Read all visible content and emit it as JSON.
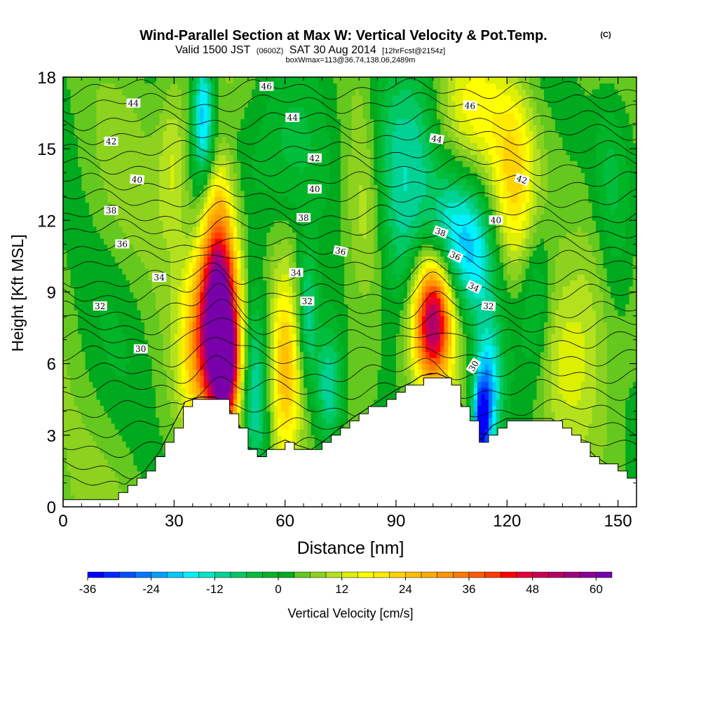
{
  "title": {
    "main": "Wind-Parallel Section at Max W: Vertical Velocity & Pot.Temp.",
    "copyright": "(C)",
    "valid_a": "Valid 1500 JST",
    "valid_b": "(0600Z)",
    "valid_c": "SAT 30 Aug 2014",
    "valid_d": "[12hrFcst@2154z]",
    "box": "boxWmax=113@36.74,138.06,2489m"
  },
  "chart_data": {
    "type": "heatmap",
    "xlabel": "Distance [nm]",
    "ylabel": "Height [Kft MSL]",
    "xlim": [
      0,
      155
    ],
    "ylim": [
      0,
      18
    ],
    "x_ticks": [
      "0",
      "30",
      "60",
      "90",
      "120",
      "150"
    ],
    "y_ticks": [
      "0",
      "3",
      "6",
      "9",
      "12",
      "15",
      "18"
    ],
    "colorbar": {
      "label": "Vertical Velocity [cm/s]",
      "ticks": [
        "-36",
        "-24",
        "-12",
        "0",
        "12",
        "24",
        "36",
        "48",
        "60"
      ],
      "levels": [
        -36,
        -33,
        -30,
        -27,
        -24,
        -21,
        -18,
        -15,
        -12,
        -9,
        -6,
        -3,
        0,
        3,
        6,
        9,
        12,
        15,
        18,
        21,
        24,
        27,
        30,
        33,
        36,
        39,
        42,
        45,
        48,
        51,
        54,
        57,
        60,
        63
      ],
      "colors": [
        "#0000ff",
        "#0028ff",
        "#0050ff",
        "#0078ff",
        "#00a0ff",
        "#00c8ff",
        "#00f0ff",
        "#00e6c8",
        "#00d296",
        "#00c864",
        "#00be3c",
        "#00b428",
        "#00aa1e",
        "#64c81e",
        "#8cd21e",
        "#b4e11e",
        "#dcf000",
        "#ffff00",
        "#ffeb00",
        "#ffd200",
        "#ffbe00",
        "#ffaa00",
        "#ff9600",
        "#ff7800",
        "#ff5a00",
        "#ff3c00",
        "#ff0000",
        "#e6003c",
        "#c80050",
        "#b40064",
        "#a0007d",
        "#8c0096",
        "#7800aa"
      ]
    },
    "terrain_kft": [
      [
        0,
        0.2
      ],
      [
        8,
        0.2
      ],
      [
        14,
        0.4
      ],
      [
        18,
        1
      ],
      [
        22,
        1.4
      ],
      [
        26,
        2.2
      ],
      [
        30,
        3.4
      ],
      [
        33,
        4.3
      ],
      [
        37,
        4.5
      ],
      [
        41,
        4.5
      ],
      [
        44,
        4.2
      ],
      [
        47,
        3.5
      ],
      [
        50,
        2.4
      ],
      [
        53,
        2
      ],
      [
        57,
        2.5
      ],
      [
        60,
        2.7
      ],
      [
        63,
        2.5
      ],
      [
        67,
        2.3
      ],
      [
        70,
        2.6
      ],
      [
        74,
        3.1
      ],
      [
        78,
        3.6
      ],
      [
        82,
        4
      ],
      [
        86,
        4.4
      ],
      [
        90,
        4.8
      ],
      [
        94,
        5.1
      ],
      [
        97,
        5.4
      ],
      [
        101,
        5.5
      ],
      [
        104,
        5.3
      ],
      [
        107,
        4.4
      ],
      [
        110,
        3.5
      ],
      [
        113,
        2.7
      ],
      [
        116,
        3.3
      ],
      [
        120,
        3.6
      ],
      [
        124,
        3.6
      ],
      [
        128,
        3.6
      ],
      [
        132,
        3.6
      ],
      [
        136,
        3.1
      ],
      [
        140,
        2.6
      ],
      [
        144,
        2
      ],
      [
        148,
        1.6
      ],
      [
        152,
        1.1
      ],
      [
        155,
        0.9
      ]
    ],
    "w_cells": [
      {
        "x": 42,
        "y": 8.0,
        "w": 64,
        "sx": 3.5,
        "sy": 2.8
      },
      {
        "x": 44,
        "y": 6.0,
        "w": 40,
        "sx": 2.5,
        "sy": 1.8
      },
      {
        "x": 36,
        "y": 6.8,
        "w": 16,
        "sx": 3.5,
        "sy": 2.5
      },
      {
        "x": 60,
        "y": 5.5,
        "w": 22,
        "sx": 3,
        "sy": 2.8
      },
      {
        "x": 100,
        "y": 7.8,
        "w": 48,
        "sx": 3.5,
        "sy": 1.8
      },
      {
        "x": 42,
        "y": 12.5,
        "w": 12,
        "sx": 3,
        "sy": 2
      },
      {
        "x": 30,
        "y": 14.5,
        "w": 10,
        "sx": 3,
        "sy": 2.5
      },
      {
        "x": 110,
        "y": 16.5,
        "w": 12,
        "sx": 8,
        "sy": 2
      },
      {
        "x": 122,
        "y": 13.5,
        "w": 14,
        "sx": 4,
        "sy": 2.5
      },
      {
        "x": 82,
        "y": 12.0,
        "w": 8,
        "sx": 4,
        "sy": 3
      },
      {
        "x": 135,
        "y": 6.0,
        "w": 8,
        "sx": 6,
        "sy": 2.5
      },
      {
        "x": 75,
        "y": 6.0,
        "w": 5,
        "sx": 6,
        "sy": 2
      },
      {
        "x": 143,
        "y": 10.5,
        "w": 6,
        "sx": 4,
        "sy": 3
      },
      {
        "x": 38,
        "y": 16.5,
        "w": -22,
        "sx": 2,
        "sy": 2
      },
      {
        "x": 52,
        "y": 5.0,
        "w": -14,
        "sx": 2.5,
        "sy": 3
      },
      {
        "x": 66,
        "y": 8.0,
        "w": -16,
        "sx": 2,
        "sy": 2
      },
      {
        "x": 72,
        "y": 5.0,
        "w": -20,
        "sx": 3,
        "sy": 2
      },
      {
        "x": 113,
        "y": 3.4,
        "w": -32,
        "sx": 1.6,
        "sy": 1.4
      },
      {
        "x": 115,
        "y": 4.8,
        "w": -22,
        "sx": 2.5,
        "sy": 2
      },
      {
        "x": 105,
        "y": 11.5,
        "w": -16,
        "sx": 5,
        "sy": 1.8
      },
      {
        "x": 112,
        "y": 10.2,
        "w": -14,
        "sx": 4,
        "sy": 2
      },
      {
        "x": 92,
        "y": 11.0,
        "w": -10,
        "sx": 4,
        "sy": 2.5
      },
      {
        "x": 60,
        "y": 14.5,
        "w": -8,
        "sx": 10,
        "sy": 2.5
      },
      {
        "x": 88,
        "y": 15.0,
        "w": -12,
        "sx": 4,
        "sy": 3
      },
      {
        "x": 96,
        "y": 15.5,
        "w": -10,
        "sx": 4,
        "sy": 2.5
      },
      {
        "x": 148,
        "y": 14.0,
        "w": -8,
        "sx": 4,
        "sy": 3
      },
      {
        "x": 128,
        "y": 9.0,
        "w": -10,
        "sx": 3,
        "sy": 2.5
      }
    ],
    "isentropes": [
      {
        "theta": 30,
        "x": 21,
        "y": 6.6,
        "angle": 0,
        "level": 4.1
      },
      {
        "theta": 30,
        "x": 111,
        "y": 5.9,
        "angle": -58,
        "level": null
      },
      {
        "theta": 32,
        "x": 10,
        "y": 8.4,
        "angle": 0,
        "level": 6.3
      },
      {
        "theta": 32,
        "x": 66,
        "y": 8.6,
        "angle": 0,
        "level": null
      },
      {
        "theta": 32,
        "x": 115,
        "y": 8.4,
        "angle": 5,
        "level": null
      },
      {
        "theta": 34,
        "x": 26,
        "y": 9.6,
        "angle": 0,
        "level": 7.6
      },
      {
        "theta": 34,
        "x": 63,
        "y": 9.8,
        "angle": 0,
        "level": null
      },
      {
        "theta": 34,
        "x": 111,
        "y": 9.2,
        "angle": 25,
        "level": null
      },
      {
        "theta": 36,
        "x": 16,
        "y": 11.0,
        "angle": 0,
        "level": 8.9
      },
      {
        "theta": 36,
        "x": 75,
        "y": 10.7,
        "angle": 12,
        "level": null
      },
      {
        "theta": 36,
        "x": 106,
        "y": 10.5,
        "angle": 25,
        "level": null
      },
      {
        "theta": 38,
        "x": 13,
        "y": 12.4,
        "angle": 0,
        "level": 10.3
      },
      {
        "theta": 38,
        "x": 65,
        "y": 12.1,
        "angle": 0,
        "level": null
      },
      {
        "theta": 38,
        "x": 102,
        "y": 11.5,
        "angle": 20,
        "level": null
      },
      {
        "theta": 40,
        "x": 20,
        "y": 13.7,
        "angle": 5,
        "level": 11.6
      },
      {
        "theta": 40,
        "x": 68,
        "y": 13.3,
        "angle": 0,
        "level": null
      },
      {
        "theta": 40,
        "x": 117,
        "y": 12.0,
        "angle": 0,
        "level": null
      },
      {
        "theta": 42,
        "x": 13,
        "y": 15.3,
        "angle": 0,
        "level": 12.9
      },
      {
        "theta": 42,
        "x": 68,
        "y": 14.6,
        "angle": 0,
        "level": null
      },
      {
        "theta": 42,
        "x": 124,
        "y": 13.7,
        "angle": 20,
        "level": null
      },
      {
        "theta": 44,
        "x": 19,
        "y": 16.9,
        "angle": 0,
        "level": 14.3
      },
      {
        "theta": 44,
        "x": 62,
        "y": 16.3,
        "angle": 0,
        "level": null
      },
      {
        "theta": 44,
        "x": 101,
        "y": 15.4,
        "angle": 10,
        "level": null
      },
      {
        "theta": 46,
        "x": 55,
        "y": 17.6,
        "angle": 0,
        "level": 15.6
      },
      {
        "theta": 46,
        "x": 110,
        "y": 16.8,
        "angle": 5,
        "level": null
      }
    ],
    "extra_isentrope_levels": [
      0.9,
      1.6,
      2.5,
      3.3,
      4.9,
      5.6,
      7.0,
      8.2,
      9.5,
      10.9,
      12.2,
      13.6,
      14.9,
      16.2,
      16.9,
      17.5
    ]
  }
}
